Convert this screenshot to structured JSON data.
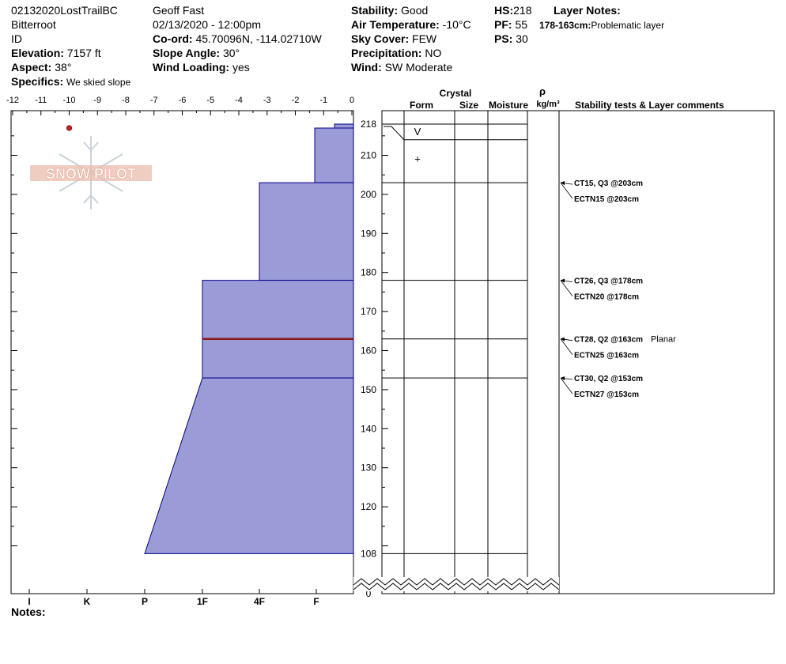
{
  "header": {
    "pit_name": "02132020LostTrailBC",
    "range": "Bitterroot",
    "state": "ID",
    "elevation_label": "Elevation:",
    "elevation": "7157 ft",
    "aspect_label": "Aspect:",
    "aspect": "38°",
    "specifics_label": "Specifics:",
    "specifics": "We skied slope",
    "observer": "Geoff Fast",
    "datetime": "02/13/2020 - 12:00pm",
    "coord_label": "Co-ord:",
    "coord": "45.70096N, -114.02710W",
    "slope_label": "Slope Angle:",
    "slope": "30°",
    "wind_loading_label": "Wind Loading:",
    "wind_loading": "yes",
    "stability_label": "Stability:",
    "stability": "Good",
    "air_temp_label": "Air Temperature:",
    "air_temp": "-10°C",
    "sky_label": "Sky Cover:",
    "sky": "FEW",
    "precip_label": "Precipitation:",
    "precip": "NO",
    "wind_label": "Wind:",
    "wind": "SW Moderate",
    "hs_label": "HS:",
    "hs": "218",
    "pf_label": "PF:",
    "pf": "55",
    "ps_label": "PS:",
    "ps": "30",
    "layer_notes_label": "Layer Notes:",
    "layer_note_range": "178-163cm:",
    "layer_note_text": "Problematic layer"
  },
  "notes_label": "Notes:",
  "logo_text": "SNOW PILOT",
  "columns": {
    "crystal": "Crystal",
    "form": "Form",
    "size": "Size",
    "moisture": "Moisture",
    "rho": "ρ",
    "density_unit": "kg/m³",
    "stability_tests": "Stability tests & Layer comments"
  },
  "colors": {
    "hardness_fill": "#9b9bd8",
    "hardness_stroke": "#00008b",
    "problem_layer": "#8b1a1a",
    "temp_point": "#cc2222"
  },
  "chart_data": {
    "type": "snow-profile",
    "temperature_axis": {
      "ticks": [
        "-12",
        "-11",
        "-10",
        "-9",
        "-8",
        "-7",
        "-6",
        "-5",
        "-4",
        "-3",
        "-2",
        "-1",
        "0"
      ],
      "range": [
        -12,
        0
      ]
    },
    "hardness_axis": {
      "ticks": [
        "I",
        "K",
        "P",
        "1F",
        "4F",
        "F"
      ],
      "order": [
        "F",
        "4F",
        "1F",
        "P",
        "K",
        "I"
      ]
    },
    "height_axis": {
      "labels": [
        "218",
        "210",
        "200",
        "190",
        "180",
        "170",
        "160",
        "150",
        "140",
        "130",
        "120",
        "108",
        "0"
      ],
      "top_cm": 218,
      "break_below_cm": 108
    },
    "temperature_points": [
      {
        "height_cm": 217,
        "temp_c": -10
      }
    ],
    "hardness_layers": [
      {
        "top_cm": 218,
        "bottom_cm": 217,
        "hardness": "F"
      },
      {
        "top_cm": 217,
        "bottom_cm": 203,
        "hardness": "F+"
      },
      {
        "top_cm": 203,
        "bottom_cm": 178,
        "hardness": "4F"
      },
      {
        "top_cm": 178,
        "bottom_cm": 153,
        "hardness": "1F"
      },
      {
        "top_cm": 153,
        "bottom_cm": 108,
        "hardness_top": "1F",
        "hardness_bottom": "P-"
      }
    ],
    "problem_layer_cm": 163,
    "layer_boundaries_cm": [
      218,
      214,
      203,
      178,
      163,
      153,
      108
    ],
    "crystal_forms": [
      {
        "height_cm": 216,
        "symbol": "V"
      },
      {
        "height_cm": 209,
        "symbol": "+"
      }
    ],
    "stability_tests": [
      {
        "height_cm": 203,
        "label": "CT15, Q3 @203cm",
        "comment": ""
      },
      {
        "height_cm": 203,
        "label": "ECTN15 @203cm",
        "comment": ""
      },
      {
        "height_cm": 178,
        "label": "CT26, Q3 @178cm",
        "comment": ""
      },
      {
        "height_cm": 178,
        "label": "ECTN20 @178cm",
        "comment": ""
      },
      {
        "height_cm": 163,
        "label": "CT28, Q2 @163cm",
        "comment": "Planar"
      },
      {
        "height_cm": 163,
        "label": "ECTN25 @163cm",
        "comment": ""
      },
      {
        "height_cm": 153,
        "label": "CT30, Q2 @153cm",
        "comment": ""
      },
      {
        "height_cm": 153,
        "label": "ECTN27 @153cm",
        "comment": ""
      }
    ]
  }
}
